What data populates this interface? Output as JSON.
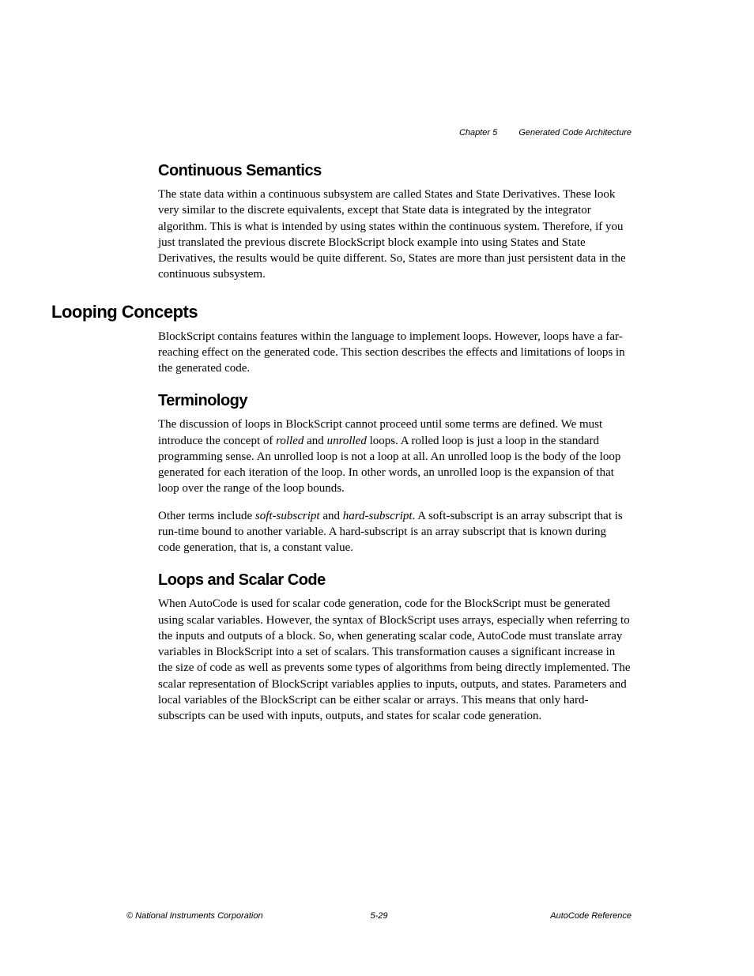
{
  "header": {
    "chapter": "Chapter 5",
    "chapterTitle": "Generated Code Architecture"
  },
  "sections": {
    "continuousSemantics": {
      "heading": "Continuous Semantics",
      "body": "The state data within a continuous subsystem are called States and State Derivatives. These look very similar to the discrete equivalents, except that State data is integrated by the integrator algorithm. This is what is intended by using states within the continuous system. Therefore, if you just translated the previous discrete BlockScript block example into using States and State Derivatives, the results would be quite different. So, States are more than just persistent data in the continuous subsystem."
    },
    "loopingConcepts": {
      "heading": "Looping Concepts",
      "body": "BlockScript contains features within the language to implement loops. However, loops have a far-reaching effect on the generated code. This section describes the effects and limitations of loops in the generated code."
    },
    "terminology": {
      "heading": "Terminology",
      "para1_part1": "The discussion of loops in BlockScript cannot proceed until some terms are defined. We must introduce the concept of ",
      "para1_italic1": "rolled",
      "para1_part2": " and ",
      "para1_italic2": "unrolled",
      "para1_part3": " loops. A rolled loop is just a loop in the standard programming sense. An unrolled loop is not a loop at all. An unrolled loop is the body of the loop generated for each iteration of the loop. In other words, an unrolled loop is the expansion of that loop over the range of the loop bounds.",
      "para2_part1": "Other terms include ",
      "para2_italic1": "soft-subscript",
      "para2_part2": " and ",
      "para2_italic2": "hard-subscript",
      "para2_part3": ". A soft-subscript is an array subscript that is run-time bound to another variable. A hard-subscript is an array subscript that is known during code generation, that is, a constant value."
    },
    "loopsAndScalar": {
      "heading": "Loops and Scalar Code",
      "body": "When AutoCode is used for scalar code generation, code for the BlockScript must be generated using scalar variables. However, the syntax of BlockScript uses arrays, especially when referring to the inputs and outputs of a block. So, when generating scalar code, AutoCode must translate array variables in BlockScript into a set of scalars. This transformation causes a significant increase in the size of code as well as prevents some types of algorithms from being directly implemented. The scalar representation of BlockScript variables applies to inputs, outputs, and states. Parameters and local variables of the BlockScript can be either scalar or arrays. This means that only hard-subscripts can be used with inputs, outputs, and states for scalar code generation."
    }
  },
  "footer": {
    "left": "© National Instruments Corporation",
    "center": "5-29",
    "right": "AutoCode Reference"
  },
  "styling": {
    "pageWidth": 954,
    "pageHeight": 1235,
    "backgroundColor": "#ffffff",
    "textColor": "#000000",
    "bodyFont": "Times New Roman",
    "headingFont": "Arial",
    "headerFooterFont": "Arial",
    "bodyFontSize": 15,
    "h1FontSize": 22,
    "h2FontSize": 20,
    "headerFooterFontSize": 11,
    "bodyLineHeight": 1.35,
    "contentLeftMargin": 200,
    "contentRightMargin": 155,
    "h1Outdent": -135
  }
}
